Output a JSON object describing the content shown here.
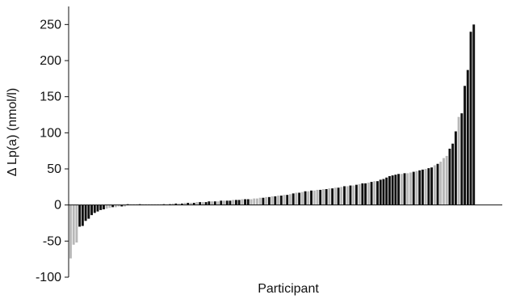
{
  "chart_data": {
    "type": "bar",
    "title": "",
    "xlabel": "Participant",
    "ylabel": "Δ Lp(a) (nmol/l)",
    "ylim": [
      -100,
      275
    ],
    "yticks": [
      -100,
      -50,
      0,
      50,
      100,
      150,
      200,
      250
    ],
    "ytick_labels": [
      "-100",
      "-50",
      "0",
      "50",
      "100",
      "150",
      "200",
      "250"
    ],
    "grid": false,
    "legend": "none",
    "colors": {
      "dark": "#111111",
      "light": "#b8b8b8"
    },
    "series": [
      {
        "values": [
          -74,
          -55,
          -52,
          -30,
          -29,
          -22,
          -19,
          -14,
          -11,
          -9,
          -7,
          -6,
          -5,
          -4,
          -3,
          -3,
          -2,
          -2,
          -2,
          -1,
          -1,
          -1,
          -1,
          -1,
          0,
          0,
          0,
          0,
          0,
          0,
          1,
          1,
          1,
          1,
          2,
          2,
          2,
          2,
          3,
          3,
          3,
          3,
          4,
          4,
          4,
          4,
          5,
          5,
          5,
          5,
          6,
          6,
          6,
          6,
          7,
          7,
          7,
          8,
          8,
          8,
          8,
          9,
          9,
          10,
          10,
          11,
          11,
          12,
          12,
          13,
          13,
          14,
          14,
          15,
          16,
          17,
          17,
          18,
          19,
          19,
          20,
          20,
          21,
          21,
          22,
          22,
          23,
          23,
          24,
          24,
          25,
          26,
          26,
          27,
          27,
          28,
          29,
          30,
          30,
          31,
          32,
          33,
          33,
          35,
          36,
          38,
          40,
          41,
          42,
          43,
          43,
          44,
          44,
          45,
          46,
          47,
          48,
          49,
          50,
          51,
          52,
          55,
          57,
          60,
          65,
          68,
          78,
          85,
          102,
          122,
          127,
          165,
          187,
          240,
          250
        ],
        "colors": [
          "light",
          "light",
          "light",
          "dark",
          "dark",
          "dark",
          "dark",
          "dark",
          "dark",
          "dark",
          "dark",
          "dark",
          "light",
          "light",
          "dark",
          "light",
          "light",
          "dark",
          "light",
          "dark",
          "light",
          "light",
          "light",
          "dark",
          "light",
          "light",
          "light",
          "light",
          "light",
          "light",
          "light",
          "dark",
          "light",
          "dark",
          "light",
          "dark",
          "light",
          "dark",
          "light",
          "dark",
          "light",
          "dark",
          "light",
          "dark",
          "light",
          "dark",
          "dark",
          "light",
          "dark",
          "light",
          "dark",
          "light",
          "dark",
          "dark",
          "light",
          "dark",
          "dark",
          "light",
          "dark",
          "dark",
          "light",
          "light",
          "light",
          "light",
          "dark",
          "light",
          "dark",
          "light",
          "dark",
          "light",
          "dark",
          "light",
          "dark",
          "light",
          "dark",
          "light",
          "dark",
          "light",
          "dark",
          "light",
          "dark",
          "light",
          "light",
          "dark",
          "light",
          "dark",
          "light",
          "dark",
          "light",
          "dark",
          "light",
          "dark",
          "light",
          "dark",
          "light",
          "dark",
          "light",
          "dark",
          "dark",
          "light",
          "dark",
          "light",
          "dark",
          "dark",
          "dark",
          "dark",
          "dark",
          "dark",
          "dark",
          "dark",
          "light",
          "dark",
          "light",
          "light",
          "dark",
          "light",
          "dark",
          "dark",
          "light",
          "dark",
          "dark",
          "light",
          "dark",
          "light",
          "light",
          "light",
          "dark",
          "dark",
          "dark",
          "light",
          "dark",
          "dark",
          "dark",
          "dark",
          "dark"
        ]
      }
    ]
  }
}
